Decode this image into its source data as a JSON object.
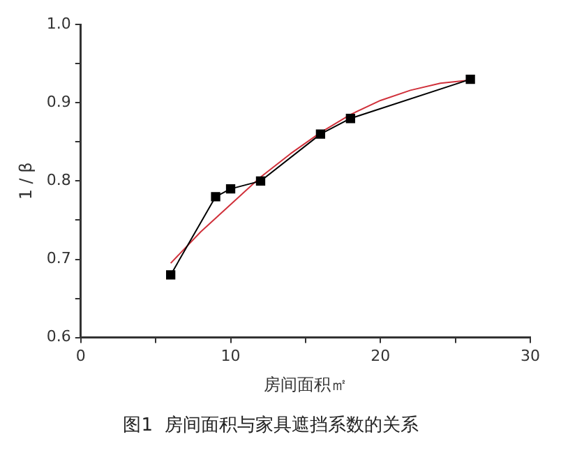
{
  "chart_data": {
    "type": "line",
    "title": "图1  房间面积与家具遮挡系数的关系",
    "xlabel": "房间面积㎡",
    "ylabel": "1 / β",
    "xlim": [
      0,
      30
    ],
    "xticks": [
      0,
      {
        "value": 5,
        "label": null
      },
      10,
      {
        "value": 15,
        "label": null
      },
      20,
      {
        "value": 25,
        "label": null
      },
      30
    ],
    "ylim": [
      0.6,
      1.0
    ],
    "yticks": [
      0.6,
      {
        "value": 0.65,
        "label": null
      },
      0.7,
      {
        "value": 0.75,
        "label": null
      },
      0.8,
      {
        "value": 0.85,
        "label": null
      },
      0.9,
      {
        "value": 0.95,
        "label": null
      },
      {
        "value": 1,
        "label": "1.0"
      }
    ],
    "grid": false,
    "legend": false,
    "series": [
      {
        "color": "#000000",
        "marker": "square",
        "x": [
          6,
          9,
          10,
          12,
          16,
          18,
          26
        ],
        "values": [
          0.68,
          0.78,
          0.79,
          0.8,
          0.86,
          0.88,
          0.93
        ]
      },
      {
        "color": "#d0303a",
        "marker": "none",
        "x": [
          6,
          8,
          10,
          12,
          14,
          16,
          18,
          20,
          22,
          24,
          26
        ],
        "values": [
          0.695,
          0.735,
          0.77,
          0.805,
          0.835,
          0.862,
          0.885,
          0.903,
          0.916,
          0.925,
          0.929
        ]
      }
    ]
  }
}
